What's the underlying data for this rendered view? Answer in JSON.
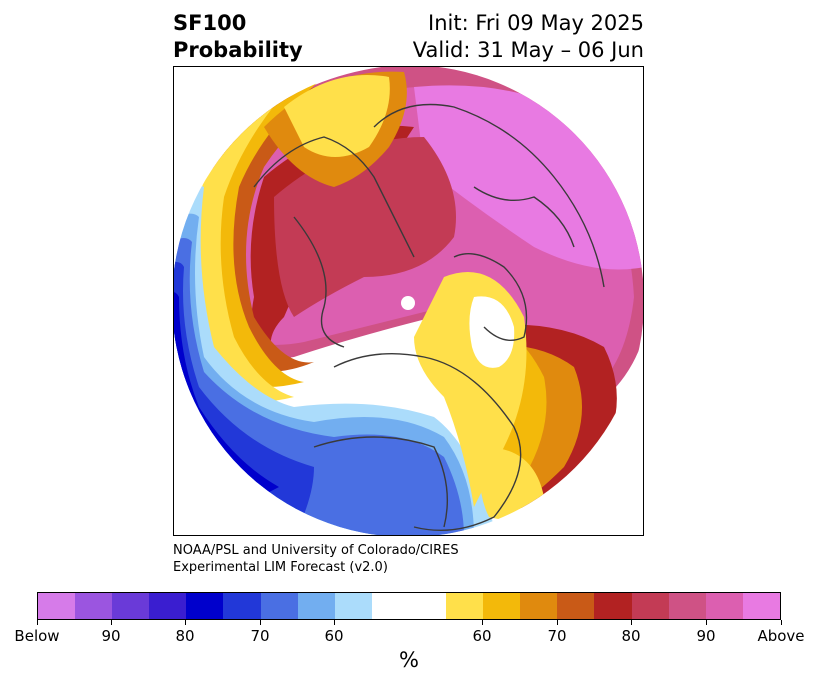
{
  "title": {
    "left_line1": "SF100",
    "left_line2": "Probability",
    "right_line1": "Init: Fri 09 May 2025",
    "right_line2": "Valid: 31 May – 06 Jun"
  },
  "credit": {
    "line1": "NOAA/PSL and University of Colorado/CIRES",
    "line2": "Experimental LIM Forecast (v2.0)"
  },
  "colorbar": {
    "unit": "%",
    "colors": [
      "#d67be9",
      "#9b55e0",
      "#6a3ad8",
      "#3a1ed0",
      "#0000cc",
      "#2238d8",
      "#4a6fe3",
      "#72aef0",
      "#abdcfb",
      "#ffffff",
      "#ffe04a",
      "#f3b90a",
      "#e08a0e",
      "#c95a17",
      "#b22222",
      "#c33b55",
      "#cf5285",
      "#dc5fb0",
      "#e87ae2"
    ],
    "tick_labels": [
      "Below",
      "90",
      "80",
      "70",
      "60",
      "60",
      "70",
      "80",
      "90",
      "Above"
    ]
  },
  "map": {
    "projection": "north-polar",
    "colors": {
      "below_light": "#abdcfb",
      "below_mid": "#72aef0",
      "below_60": "#4a6fe3",
      "below_70": "#2238d8",
      "below_80": "#0000cc",
      "below_90": "#3a1ed0",
      "above_50": "#ffe04a",
      "above_60": "#f3b90a",
      "above_65": "#e08a0e",
      "above_70": "#c95a17",
      "above_80": "#b22222",
      "above_85": "#c33b55",
      "above_90": "#cf5285",
      "above_95": "#dc5fb0",
      "above_top": "#e87ae2",
      "coast": "#3a3a3a"
    }
  }
}
